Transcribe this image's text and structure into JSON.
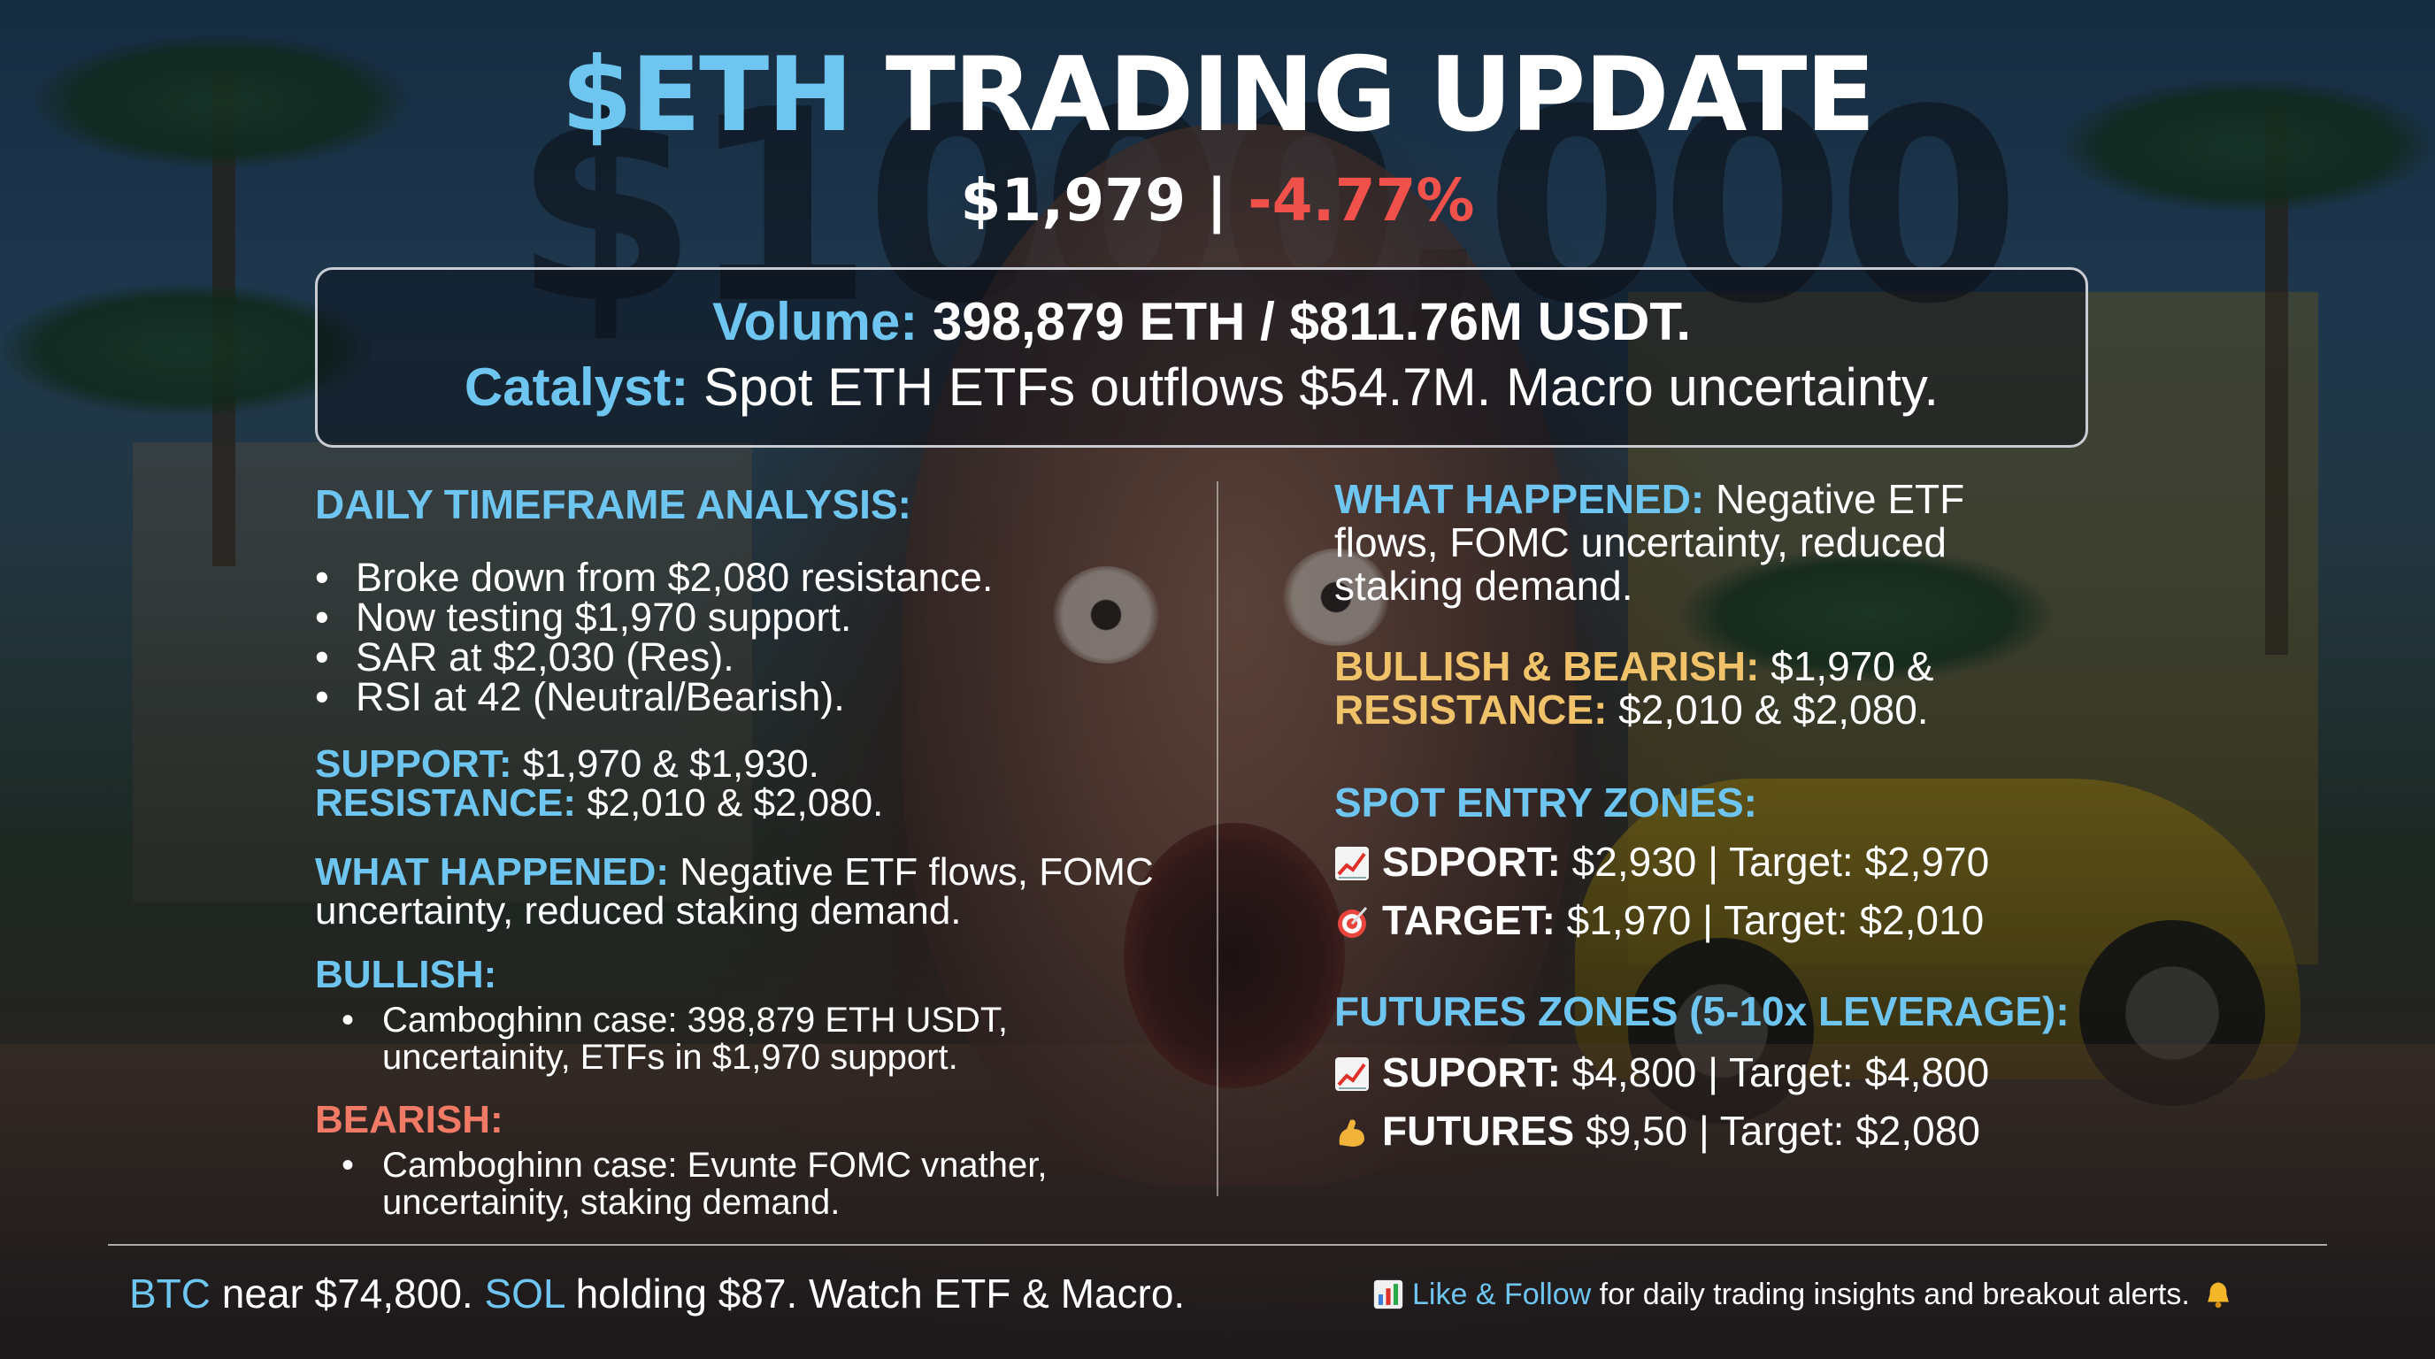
{
  "header": {
    "title_ticker": "$ETH",
    "title_rest": " TRADING UPDATE",
    "price": "$1,979",
    "separator": " | ",
    "change": "-4.77%",
    "background_watermark": "$1000,000"
  },
  "infobox": {
    "volume_label": "Volume:",
    "volume_value": " 398,879 ETH / $811.76M USDT.",
    "catalyst_label": "Catalyst:",
    "catalyst_value": " Spot ETH ETFs outflows $54.7M. Macro uncertainty."
  },
  "left": {
    "daily_title": "DAILY TIMEFRAME ANALYSIS:",
    "daily_bullets": [
      "Broke down from $2,080 resistance.",
      "Now testing $1,970 support.",
      "SAR at $2,030 (Res).",
      "RSI at 42 (Neutral/Bearish)."
    ],
    "support_label": "SUPPORT:",
    "support_value": " $1,970 & $1,930.",
    "resistance_label": "RESISTANCE:",
    "resistance_value": " $2,010 & $2,080.",
    "what_label": "WHAT HAPPENED:",
    "what_value": " Negative ETF flows, FOMC uncertainty, reduced staking demand.",
    "bullish_title": "BULLISH:",
    "bullish_bullet": "Camboghinn case: 398,879 ETH USDT, uncertainity, ETFs in $1,970 support.",
    "bearish_title": "BEARISH:",
    "bearish_bullet": "Camboghinn case: Evunte FOMC vnather, uncertainity, staking demand."
  },
  "right": {
    "what_label": "WHAT HAPPENED:",
    "what_value": " Negative ETF flows, FOMC uncertainty, reduced staking demand.",
    "bb_label": "BULLISH & BEARISH:",
    "bb_value": " $1,970 &",
    "res_label": "RESISTANCE:",
    "res_value": " $2,010 & $2,080.",
    "spot_title": "SPOT ENTRY ZONES:",
    "spot_rows": [
      {
        "icon": "chart-up-icon",
        "label": "SDPORT:",
        "value": " $2,930 | Target: $2,970"
      },
      {
        "icon": "target-icon",
        "label": "TARGET:",
        "value": " $1,970 | Target: $2,010"
      }
    ],
    "futures_title": "FUTURES ZONES (5-10x LEVERAGE):",
    "futures_rows": [
      {
        "icon": "chart-up-icon",
        "label": "SUPORT:",
        "value": " $4,800 | Target: $4,800"
      },
      {
        "icon": "flex-arm-icon",
        "label": "FUTURES",
        "value": " $9,50 | Target: $2,080"
      }
    ]
  },
  "footer": {
    "btc": "BTC",
    "btc_text": " near $74,800. ",
    "sol": "SOL",
    "sol_text": " holding $87. Watch ETF & Macro.",
    "cta_icon": "bar-chart-icon",
    "cta_highlight": "Like & Follow",
    "cta_text": " for daily trading insights and breakout alerts.",
    "bell_icon": "bell-icon"
  },
  "colors": {
    "accent_blue": "#6ec6f0",
    "negative_red": "#f0514a",
    "bearish_salmon": "#f07a66",
    "gold": "#f0c26a"
  }
}
